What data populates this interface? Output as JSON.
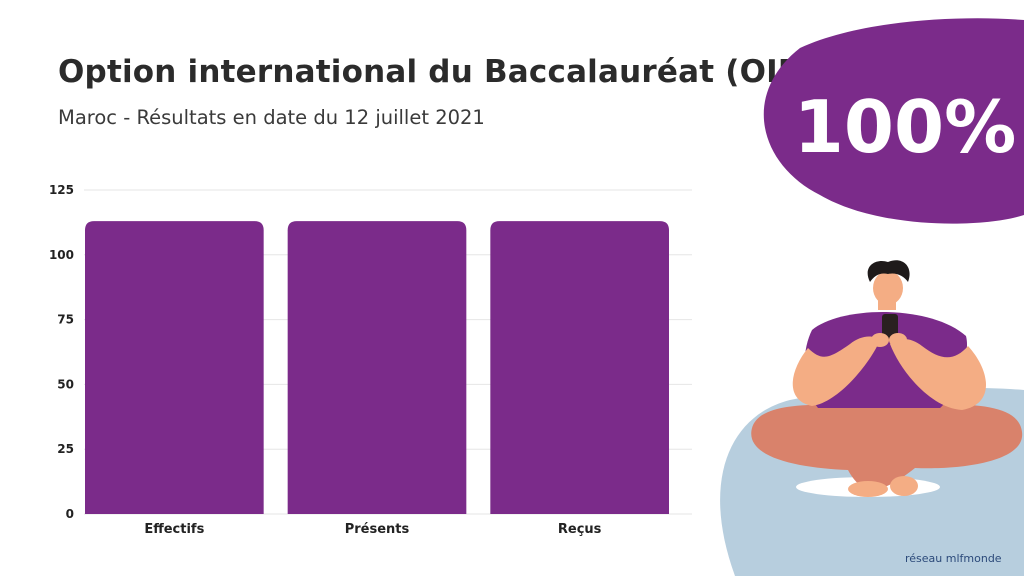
{
  "header": {
    "title": "Option international du Baccalauréat (OIB)",
    "subtitle": "Maroc - Résultats en date du 12 juillet 2021"
  },
  "badge": {
    "value": "100%",
    "color": "#7b2b8a"
  },
  "branding": {
    "text": "réseau mlfmonde"
  },
  "chart_data": {
    "type": "bar",
    "categories": [
      "Effectifs",
      "Présents",
      "Reçus"
    ],
    "values": [
      113,
      113,
      113
    ],
    "yticks": [
      0,
      25,
      50,
      75,
      100,
      125
    ],
    "ylim": [
      0,
      125
    ],
    "grid": true,
    "legend": "none",
    "bar_color": "#7b2b8a"
  },
  "illustration": {
    "icon": "person-with-phone-on-beanbag"
  }
}
